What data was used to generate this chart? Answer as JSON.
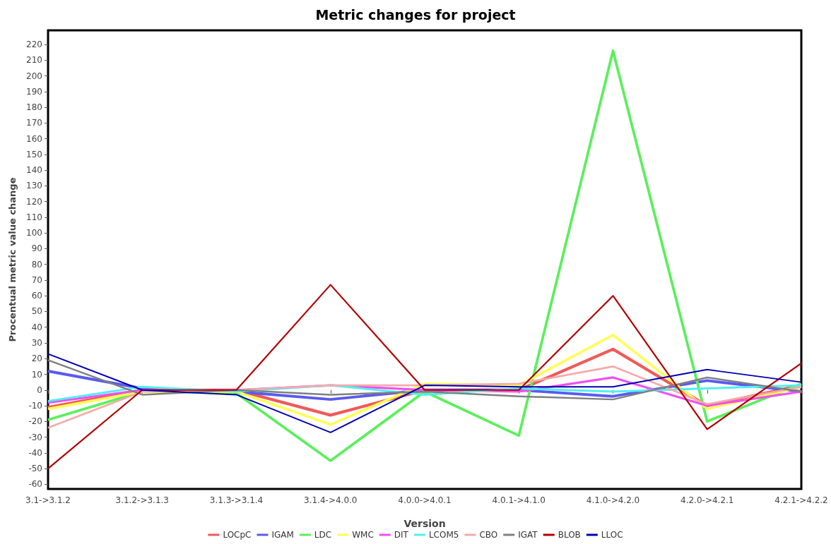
{
  "chart_data": {
    "type": "line",
    "title": "Metric changes for project",
    "xlabel": "Version",
    "ylabel": "Procentual metric value change",
    "categories": [
      "3.1->3.1.2",
      "3.1.2->3.1.3",
      "3.1.3->3.1.4",
      "3.1.4->4.0.0",
      "4.0.0->4.0.1",
      "4.0.1->4.1.0",
      "4.1.0->4.2.0",
      "4.2.0->4.2.1",
      "4.2.1->4.2.2"
    ],
    "series": [
      {
        "name": "LOCpC",
        "color": "#f05a5a",
        "values": [
          -11,
          0,
          0,
          -16,
          0,
          0,
          26,
          -10,
          3
        ]
      },
      {
        "name": "IGAM",
        "color": "#5a5af0",
        "values": [
          12,
          1,
          -1,
          -6,
          0,
          0,
          -4,
          6,
          -1
        ]
      },
      {
        "name": "LDC",
        "color": "#5af05a",
        "values": [
          -19,
          -1,
          -2,
          -45,
          -1,
          -29,
          216,
          -20,
          4
        ]
      },
      {
        "name": "WMC",
        "color": "#ffff50",
        "values": [
          -12,
          -1,
          -1,
          -22,
          4,
          3,
          35,
          -12,
          2
        ]
      },
      {
        "name": "DIT",
        "color": "#f050f0",
        "values": [
          -8,
          0,
          0,
          3,
          0,
          -1,
          8,
          -10,
          -1
        ]
      },
      {
        "name": "LCOM5",
        "color": "#50f0f0",
        "values": [
          -7,
          2,
          -1,
          3,
          -3,
          1,
          -1,
          1,
          3
        ]
      },
      {
        "name": "CBO",
        "color": "#f5aaaa",
        "values": [
          -24,
          -1,
          0,
          3,
          3,
          4,
          15,
          -9,
          2
        ]
      },
      {
        "name": "IGAT",
        "color": "#808080",
        "values": [
          19,
          -3,
          0,
          -3,
          -1,
          -4,
          -6,
          8,
          -1
        ]
      },
      {
        "name": "BLOB",
        "color": "#b00000",
        "values": [
          -50,
          0,
          0,
          67,
          0,
          0,
          60,
          -25,
          17
        ]
      },
      {
        "name": "LLOC",
        "color": "#0000b0",
        "values": [
          23,
          0,
          -3,
          -27,
          3,
          2,
          2,
          13,
          5
        ]
      }
    ],
    "ylim": [
      -63,
      229
    ],
    "yticks": [
      -60,
      -50,
      -40,
      -30,
      -20,
      -10,
      0,
      10,
      20,
      30,
      40,
      50,
      60,
      70,
      80,
      90,
      100,
      110,
      120,
      130,
      140,
      150,
      160,
      170,
      180,
      190,
      200,
      210,
      220
    ],
    "grid": false,
    "legend": "bottom",
    "marker": "none",
    "line_style": "solid"
  }
}
